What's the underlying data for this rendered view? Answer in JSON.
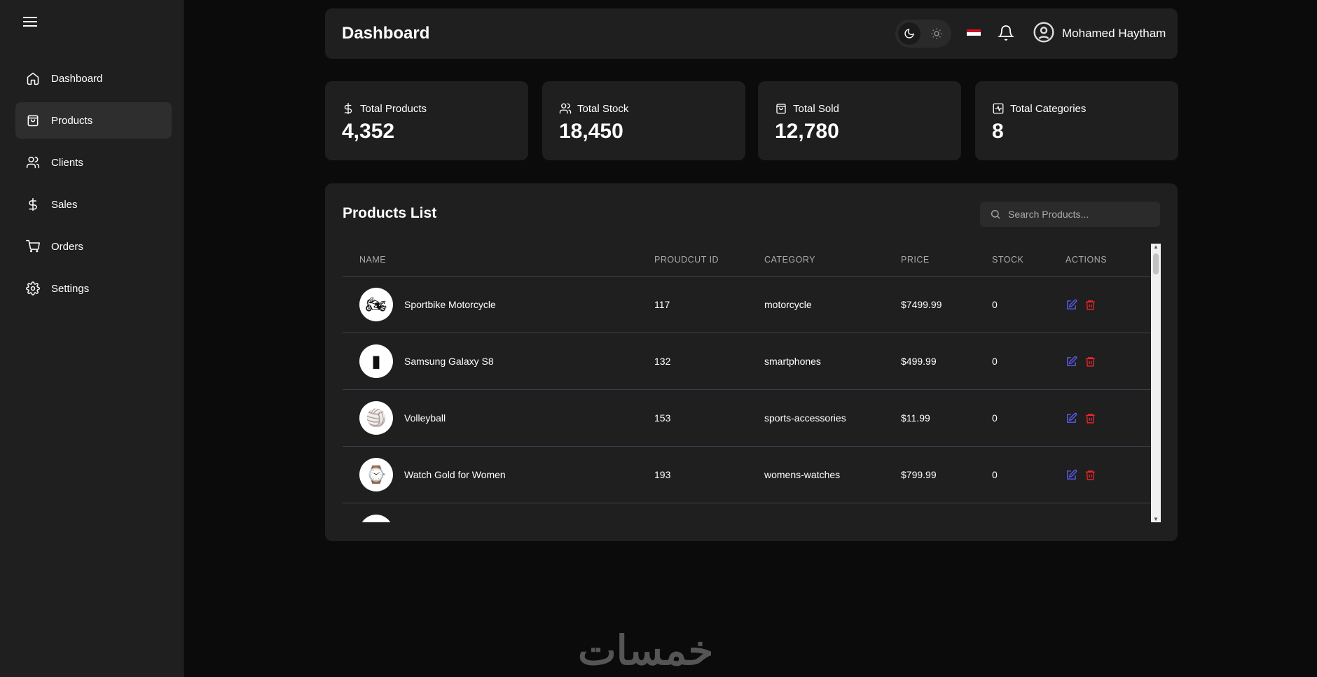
{
  "sidebar": {
    "items": [
      {
        "label": "Dashboard",
        "icon": "home-icon"
      },
      {
        "label": "Products",
        "icon": "shopping-bag-icon",
        "active": true
      },
      {
        "label": "Clients",
        "icon": "users-icon"
      },
      {
        "label": "Sales",
        "icon": "dollar-icon"
      },
      {
        "label": "Orders",
        "icon": "cart-icon"
      },
      {
        "label": "Settings",
        "icon": "gear-icon"
      }
    ]
  },
  "header": {
    "title": "Dashboard",
    "user_name": "Mohamed Haytham",
    "theme": "dark"
  },
  "stats": [
    {
      "label": "Total Products",
      "value": "4,352",
      "icon": "dollar-icon"
    },
    {
      "label": "Total Stock",
      "value": "18,450",
      "icon": "users-icon"
    },
    {
      "label": "Total Sold",
      "value": "12,780",
      "icon": "shopping-bag-icon"
    },
    {
      "label": "Total Categories",
      "value": "8",
      "icon": "activity-icon"
    }
  ],
  "products": {
    "title": "Products List",
    "search_placeholder": "Search Products...",
    "columns": [
      "NAME",
      "PROUDCUT ID",
      "CATEGORY",
      "PRICE",
      "STOCK",
      "ACTIONS"
    ],
    "rows": [
      {
        "name": "Sportbike Motorcycle",
        "id": "117",
        "category": "motorcycle",
        "price": "$7499.99",
        "stock": "0"
      },
      {
        "name": "Samsung Galaxy S8",
        "id": "132",
        "category": "smartphones",
        "price": "$499.99",
        "stock": "0"
      },
      {
        "name": "Volleyball",
        "id": "153",
        "category": "sports-accessories",
        "price": "$11.99",
        "stock": "0"
      },
      {
        "name": "Watch Gold for Women",
        "id": "193",
        "category": "womens-watches",
        "price": "$799.99",
        "stock": "0"
      },
      {
        "name": "",
        "id": "",
        "category": "",
        "price": "",
        "stock": ""
      }
    ]
  },
  "colors": {
    "edit": "#5b5bf0",
    "delete": "#e5242b",
    "card": "#1f1f1f",
    "background": "#0b0b0b"
  },
  "watermark": "خمسات"
}
